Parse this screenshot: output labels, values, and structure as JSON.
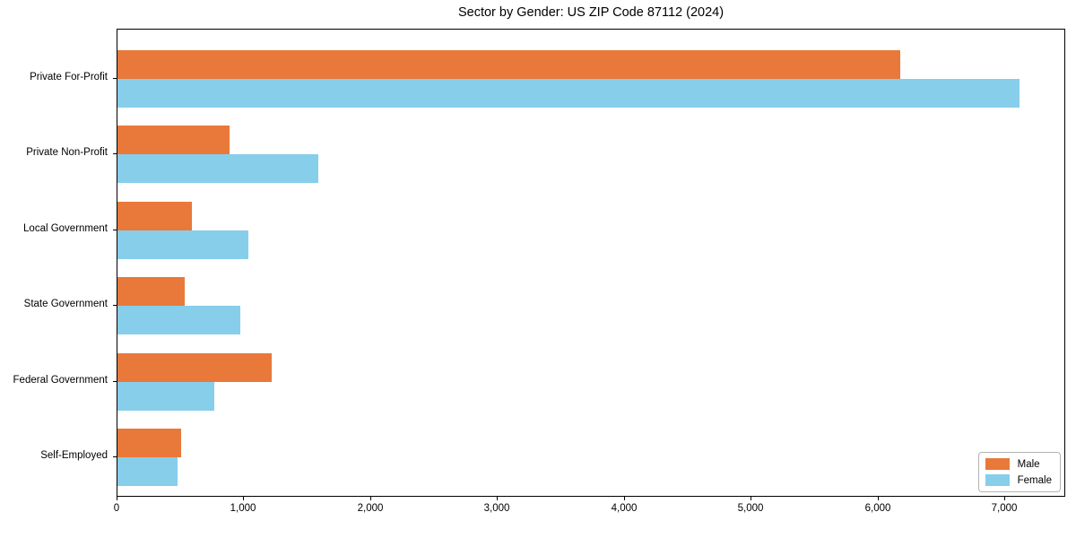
{
  "chart_data": {
    "type": "bar",
    "orientation": "horizontal",
    "title": "Sector by Gender: US ZIP Code 87112 (2024)",
    "categories": [
      "Private For-Profit",
      "Private Non-Profit",
      "Local Government",
      "State Government",
      "Federal Government",
      "Self-Employed"
    ],
    "series": [
      {
        "name": "Male",
        "color": "#e8793a",
        "values": [
          6170,
          885,
          585,
          530,
          1215,
          505
        ]
      },
      {
        "name": "Female",
        "color": "#87ceeb",
        "values": [
          7110,
          1585,
          1035,
          970,
          765,
          475
        ]
      }
    ],
    "xlabel": "",
    "ylabel": "",
    "xlim": [
      0,
      7465
    ],
    "xticks": {
      "values": [
        0,
        1000,
        2000,
        3000,
        4000,
        5000,
        6000,
        7000
      ],
      "labels": [
        "0",
        "1,000",
        "2,000",
        "3,000",
        "4,000",
        "5,000",
        "6,000",
        "7,000"
      ]
    },
    "legend": {
      "position": "lower right",
      "entries": [
        "Male",
        "Female"
      ]
    },
    "grid": false
  },
  "colors": {
    "male": "#e8793a",
    "female": "#87ceeb",
    "spine": "#000000",
    "background": "#ffffff",
    "text": "#000000"
  }
}
